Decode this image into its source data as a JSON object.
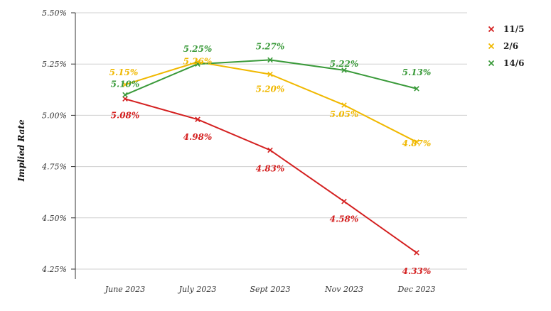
{
  "chart_data": {
    "type": "line",
    "title": "",
    "xlabel": "",
    "ylabel": "Implied Rate",
    "categories": [
      "June 2023",
      "July 2023",
      "Sept 2023",
      "Nov 2023",
      "Dec 2023"
    ],
    "ylim": [
      4.25,
      5.5
    ],
    "yticks": [
      "4.25%",
      "4.50%",
      "4.75%",
      "5.00%",
      "5.25%",
      "5.50%"
    ],
    "yticks_values": [
      4.25,
      4.5,
      4.75,
      5.0,
      5.25,
      5.5
    ],
    "grid": true,
    "legend_position": "top-right",
    "marker": "x",
    "series": [
      {
        "name": "11/5",
        "color": "#d42020",
        "values": [
          5.08,
          4.98,
          4.83,
          4.58,
          4.33
        ],
        "labels": [
          "5.08%",
          "4.98%",
          "4.83%",
          "4.58%",
          "4.33%"
        ]
      },
      {
        "name": "2/6",
        "color": "#f0b800",
        "values": [
          5.15,
          5.26,
          5.2,
          5.05,
          4.87
        ],
        "labels": [
          "5.15%",
          "5.26%",
          "5.20%",
          "5.05%",
          "4.87%"
        ]
      },
      {
        "name": "14/6",
        "color": "#3a9a3a",
        "values": [
          5.1,
          5.25,
          5.27,
          5.22,
          5.13
        ],
        "labels": [
          "5.10%",
          "5.25%",
          "5.27%",
          "5.22%",
          "5.13%"
        ]
      }
    ]
  }
}
